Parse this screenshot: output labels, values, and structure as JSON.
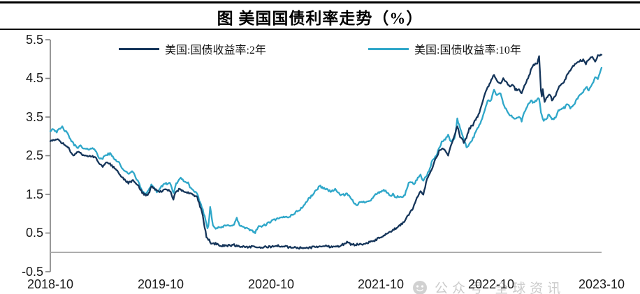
{
  "header": {
    "title": "图 美国国债利率走势（%）"
  },
  "legend": {
    "items": [
      {
        "label": "美国:国债收益率:2年",
        "color": "#15355a"
      },
      {
        "label": "美国:国债收益率:10年",
        "color": "#2fa7c9"
      }
    ]
  },
  "watermark": {
    "icon": "wechat-face-icon",
    "text": "公众号 全球资讯"
  },
  "colors": {
    "axis": "#7f7f7f",
    "zero_line": "#a6a6a6",
    "navy": "#15355a",
    "cyan": "#2fa7c9"
  },
  "chart_data": {
    "type": "line",
    "title": "图 美国国债利率走势（%）",
    "xlabel": "",
    "ylabel": "",
    "x_unit": "months since 2018-10",
    "x_ticks": [
      "2018-10",
      "2019-10",
      "2020-10",
      "2021-10",
      "2022-10",
      "2023-10"
    ],
    "x_tick_months": [
      0,
      12,
      24,
      36,
      48,
      60
    ],
    "y_ticks": [
      "5.5",
      "4.5",
      "3.5",
      "2.5",
      "1.5",
      "0.5",
      "-0.5"
    ],
    "y_tick_values": [
      5.5,
      4.5,
      3.5,
      2.5,
      1.5,
      0.5,
      -0.5
    ],
    "ylim": [
      -0.5,
      5.5
    ],
    "xlim": [
      0,
      60
    ],
    "grid": false,
    "zero_baseline": true,
    "legend_position": "top",
    "series": [
      {
        "name": "美国:国债收益率:2年",
        "color": "#15355a",
        "points": [
          [
            0,
            2.88
          ],
          [
            0.7,
            2.92
          ],
          [
            1,
            2.88
          ],
          [
            1.5,
            2.8
          ],
          [
            2,
            2.72
          ],
          [
            2.3,
            2.55
          ],
          [
            2.6,
            2.5
          ],
          [
            3,
            2.6
          ],
          [
            3.5,
            2.52
          ],
          [
            4,
            2.5
          ],
          [
            4.5,
            2.48
          ],
          [
            5,
            2.45
          ],
          [
            5.3,
            2.28
          ],
          [
            5.7,
            2.22
          ],
          [
            6,
            2.32
          ],
          [
            6.5,
            2.28
          ],
          [
            7,
            2.18
          ],
          [
            7.5,
            2.05
          ],
          [
            8,
            1.88
          ],
          [
            8.5,
            1.8
          ],
          [
            9,
            1.85
          ],
          [
            9.5,
            1.75
          ],
          [
            10,
            1.55
          ],
          [
            10.4,
            1.48
          ],
          [
            10.7,
            1.52
          ],
          [
            11,
            1.7
          ],
          [
            11.5,
            1.62
          ],
          [
            12,
            1.57
          ],
          [
            12.5,
            1.62
          ],
          [
            13,
            1.6
          ],
          [
            13.4,
            1.38
          ],
          [
            13.7,
            1.58
          ],
          [
            14,
            1.62
          ],
          [
            14.5,
            1.58
          ],
          [
            15,
            1.55
          ],
          [
            15.5,
            1.5
          ],
          [
            16,
            1.42
          ],
          [
            16.5,
            1.05
          ],
          [
            17,
            0.4
          ],
          [
            17.5,
            0.25
          ],
          [
            18,
            0.22
          ],
          [
            18.5,
            0.18
          ],
          [
            19,
            0.17
          ],
          [
            19.5,
            0.18
          ],
          [
            20,
            0.19
          ],
          [
            20.5,
            0.16
          ],
          [
            21,
            0.15
          ],
          [
            21.5,
            0.14
          ],
          [
            22,
            0.14
          ],
          [
            22.5,
            0.13
          ],
          [
            23,
            0.13
          ],
          [
            23.5,
            0.14
          ],
          [
            24,
            0.15
          ],
          [
            24.5,
            0.16
          ],
          [
            25,
            0.17
          ],
          [
            25.5,
            0.15
          ],
          [
            26,
            0.13
          ],
          [
            26.5,
            0.12
          ],
          [
            27,
            0.12
          ],
          [
            27.5,
            0.11
          ],
          [
            28,
            0.12
          ],
          [
            28.5,
            0.13
          ],
          [
            29,
            0.15
          ],
          [
            29.5,
            0.16
          ],
          [
            30,
            0.16
          ],
          [
            30.5,
            0.15
          ],
          [
            31,
            0.15
          ],
          [
            31.5,
            0.17
          ],
          [
            32,
            0.22
          ],
          [
            32.3,
            0.26
          ],
          [
            32.6,
            0.22
          ],
          [
            33,
            0.2
          ],
          [
            33.5,
            0.21
          ],
          [
            34,
            0.22
          ],
          [
            34.5,
            0.24
          ],
          [
            35,
            0.28
          ],
          [
            35.5,
            0.33
          ],
          [
            36,
            0.4
          ],
          [
            36.5,
            0.46
          ],
          [
            37,
            0.52
          ],
          [
            37.5,
            0.6
          ],
          [
            38,
            0.68
          ],
          [
            38.5,
            0.8
          ],
          [
            39,
            0.97
          ],
          [
            39.5,
            1.15
          ],
          [
            40,
            1.45
          ],
          [
            40.3,
            1.6
          ],
          [
            40.6,
            1.5
          ],
          [
            41,
            1.9
          ],
          [
            41.5,
            2.15
          ],
          [
            42,
            2.45
          ],
          [
            42.3,
            2.6
          ],
          [
            42.6,
            2.7
          ],
          [
            43,
            2.62
          ],
          [
            43.3,
            2.5
          ],
          [
            43.6,
            2.75
          ],
          [
            44,
            3.05
          ],
          [
            44.3,
            3.25
          ],
          [
            44.6,
            3.0
          ],
          [
            45,
            2.85
          ],
          [
            45.3,
            2.95
          ],
          [
            45.6,
            3.2
          ],
          [
            46,
            3.3
          ],
          [
            46.3,
            3.45
          ],
          [
            46.6,
            3.55
          ],
          [
            47,
            3.85
          ],
          [
            47.3,
            4.1
          ],
          [
            47.6,
            4.25
          ],
          [
            48,
            4.45
          ],
          [
            48.3,
            4.6
          ],
          [
            48.6,
            4.45
          ],
          [
            49,
            4.35
          ],
          [
            49.3,
            4.5
          ],
          [
            49.6,
            4.4
          ],
          [
            50,
            4.28
          ],
          [
            50.3,
            4.35
          ],
          [
            50.6,
            4.22
          ],
          [
            51,
            4.2
          ],
          [
            51.3,
            4.1
          ],
          [
            51.6,
            4.3
          ],
          [
            52,
            4.5
          ],
          [
            52.3,
            4.7
          ],
          [
            52.6,
            4.85
          ],
          [
            53,
            4.9
          ],
          [
            53.2,
            5.06
          ],
          [
            53.45,
            3.98
          ],
          [
            53.6,
            4.22
          ],
          [
            53.8,
            3.9
          ],
          [
            54,
            4.0
          ],
          [
            54.3,
            4.1
          ],
          [
            54.6,
            3.95
          ],
          [
            55,
            4.05
          ],
          [
            55.3,
            4.25
          ],
          [
            55.6,
            4.35
          ],
          [
            56,
            4.45
          ],
          [
            56.3,
            4.6
          ],
          [
            56.6,
            4.72
          ],
          [
            57,
            4.85
          ],
          [
            57.3,
            4.9
          ],
          [
            57.6,
            4.95
          ],
          [
            58,
            4.98
          ],
          [
            58.3,
            4.88
          ],
          [
            58.6,
            5.0
          ],
          [
            59,
            5.05
          ],
          [
            59.3,
            4.95
          ],
          [
            59.6,
            5.08
          ],
          [
            60,
            5.12
          ]
        ]
      },
      {
        "name": "美国:国债收益率:10年",
        "color": "#2fa7c9",
        "points": [
          [
            0,
            3.15
          ],
          [
            0.3,
            3.2
          ],
          [
            0.7,
            3.12
          ],
          [
            1,
            3.18
          ],
          [
            1.3,
            3.24
          ],
          [
            1.6,
            3.15
          ],
          [
            2,
            3.02
          ],
          [
            2.3,
            2.88
          ],
          [
            2.6,
            2.78
          ],
          [
            3,
            2.72
          ],
          [
            3.3,
            2.75
          ],
          [
            3.6,
            2.68
          ],
          [
            4,
            2.66
          ],
          [
            4.5,
            2.7
          ],
          [
            5,
            2.62
          ],
          [
            5.3,
            2.45
          ],
          [
            5.6,
            2.4
          ],
          [
            6,
            2.52
          ],
          [
            6.5,
            2.55
          ],
          [
            7,
            2.42
          ],
          [
            7.5,
            2.32
          ],
          [
            8,
            2.1
          ],
          [
            8.5,
            2.05
          ],
          [
            9,
            2.08
          ],
          [
            9.3,
            1.95
          ],
          [
            9.7,
            1.75
          ],
          [
            10,
            1.6
          ],
          [
            10.3,
            1.5
          ],
          [
            10.6,
            1.58
          ],
          [
            11,
            1.75
          ],
          [
            11.3,
            1.68
          ],
          [
            11.6,
            1.55
          ],
          [
            12,
            1.68
          ],
          [
            12.5,
            1.77
          ],
          [
            13,
            1.8
          ],
          [
            13.4,
            1.52
          ],
          [
            13.7,
            1.78
          ],
          [
            14,
            1.88
          ],
          [
            14.3,
            1.92
          ],
          [
            14.6,
            1.82
          ],
          [
            15,
            1.8
          ],
          [
            15.3,
            1.65
          ],
          [
            15.6,
            1.58
          ],
          [
            16,
            1.5
          ],
          [
            16.3,
            1.3
          ],
          [
            16.6,
            1.1
          ],
          [
            17,
            0.75
          ],
          [
            17.15,
            0.55
          ],
          [
            17.4,
            1.18
          ],
          [
            17.7,
            0.72
          ],
          [
            18,
            0.62
          ],
          [
            18.5,
            0.64
          ],
          [
            19,
            0.68
          ],
          [
            19.5,
            0.7
          ],
          [
            20,
            0.72
          ],
          [
            20.3,
            0.88
          ],
          [
            20.6,
            0.7
          ],
          [
            21,
            0.65
          ],
          [
            21.5,
            0.6
          ],
          [
            22,
            0.56
          ],
          [
            22.3,
            0.52
          ],
          [
            22.6,
            0.65
          ],
          [
            23,
            0.68
          ],
          [
            23.5,
            0.72
          ],
          [
            24,
            0.8
          ],
          [
            24.5,
            0.85
          ],
          [
            25,
            0.88
          ],
          [
            25.5,
            0.92
          ],
          [
            26,
            0.92
          ],
          [
            26.5,
            1.0
          ],
          [
            27,
            1.08
          ],
          [
            27.5,
            1.18
          ],
          [
            28,
            1.35
          ],
          [
            28.5,
            1.48
          ],
          [
            29,
            1.62
          ],
          [
            29.3,
            1.72
          ],
          [
            29.6,
            1.68
          ],
          [
            30,
            1.64
          ],
          [
            30.5,
            1.58
          ],
          [
            31,
            1.62
          ],
          [
            31.3,
            1.55
          ],
          [
            31.6,
            1.5
          ],
          [
            32,
            1.48
          ],
          [
            32.3,
            1.52
          ],
          [
            32.6,
            1.42
          ],
          [
            33,
            1.3
          ],
          [
            33.3,
            1.22
          ],
          [
            33.6,
            1.28
          ],
          [
            34,
            1.3
          ],
          [
            34.5,
            1.32
          ],
          [
            35,
            1.38
          ],
          [
            35.3,
            1.48
          ],
          [
            35.6,
            1.52
          ],
          [
            36,
            1.58
          ],
          [
            36.3,
            1.62
          ],
          [
            36.6,
            1.55
          ],
          [
            37,
            1.45
          ],
          [
            37.3,
            1.5
          ],
          [
            37.6,
            1.42
          ],
          [
            38,
            1.45
          ],
          [
            38.3,
            1.4
          ],
          [
            38.6,
            1.5
          ],
          [
            39,
            1.78
          ],
          [
            39.3,
            1.82
          ],
          [
            39.6,
            1.78
          ],
          [
            40,
            1.92
          ],
          [
            40.3,
            2.0
          ],
          [
            40.6,
            1.85
          ],
          [
            41,
            2.0
          ],
          [
            41.3,
            2.15
          ],
          [
            41.6,
            2.4
          ],
          [
            42,
            2.48
          ],
          [
            42.3,
            2.7
          ],
          [
            42.6,
            2.85
          ],
          [
            43,
            2.92
          ],
          [
            43.3,
            3.05
          ],
          [
            43.6,
            2.85
          ],
          [
            44,
            2.95
          ],
          [
            44.3,
            3.45
          ],
          [
            44.6,
            3.2
          ],
          [
            45,
            2.95
          ],
          [
            45.3,
            2.72
          ],
          [
            45.6,
            2.8
          ],
          [
            46,
            2.95
          ],
          [
            46.3,
            3.1
          ],
          [
            46.6,
            3.25
          ],
          [
            47,
            3.45
          ],
          [
            47.3,
            3.7
          ],
          [
            47.6,
            3.9
          ],
          [
            48,
            3.95
          ],
          [
            48.3,
            4.2
          ],
          [
            48.6,
            4.05
          ],
          [
            49,
            4.12
          ],
          [
            49.3,
            3.85
          ],
          [
            49.6,
            3.7
          ],
          [
            50,
            3.55
          ],
          [
            50.3,
            3.5
          ],
          [
            50.6,
            3.45
          ],
          [
            51,
            3.52
          ],
          [
            51.3,
            3.4
          ],
          [
            51.6,
            3.62
          ],
          [
            52,
            3.82
          ],
          [
            52.3,
            3.92
          ],
          [
            52.6,
            3.88
          ],
          [
            53,
            3.95
          ],
          [
            53.2,
            3.98
          ],
          [
            53.45,
            3.55
          ],
          [
            53.7,
            3.42
          ],
          [
            54,
            3.45
          ],
          [
            54.3,
            3.58
          ],
          [
            54.6,
            3.42
          ],
          [
            55,
            3.48
          ],
          [
            55.3,
            3.65
          ],
          [
            55.6,
            3.72
          ],
          [
            56,
            3.75
          ],
          [
            56.3,
            3.85
          ],
          [
            56.6,
            3.72
          ],
          [
            57,
            3.82
          ],
          [
            57.3,
            3.95
          ],
          [
            57.6,
            4.05
          ],
          [
            58,
            4.15
          ],
          [
            58.3,
            4.28
          ],
          [
            58.6,
            4.2
          ],
          [
            59,
            4.35
          ],
          [
            59.3,
            4.55
          ],
          [
            59.6,
            4.48
          ],
          [
            60,
            4.78
          ]
        ]
      }
    ]
  }
}
